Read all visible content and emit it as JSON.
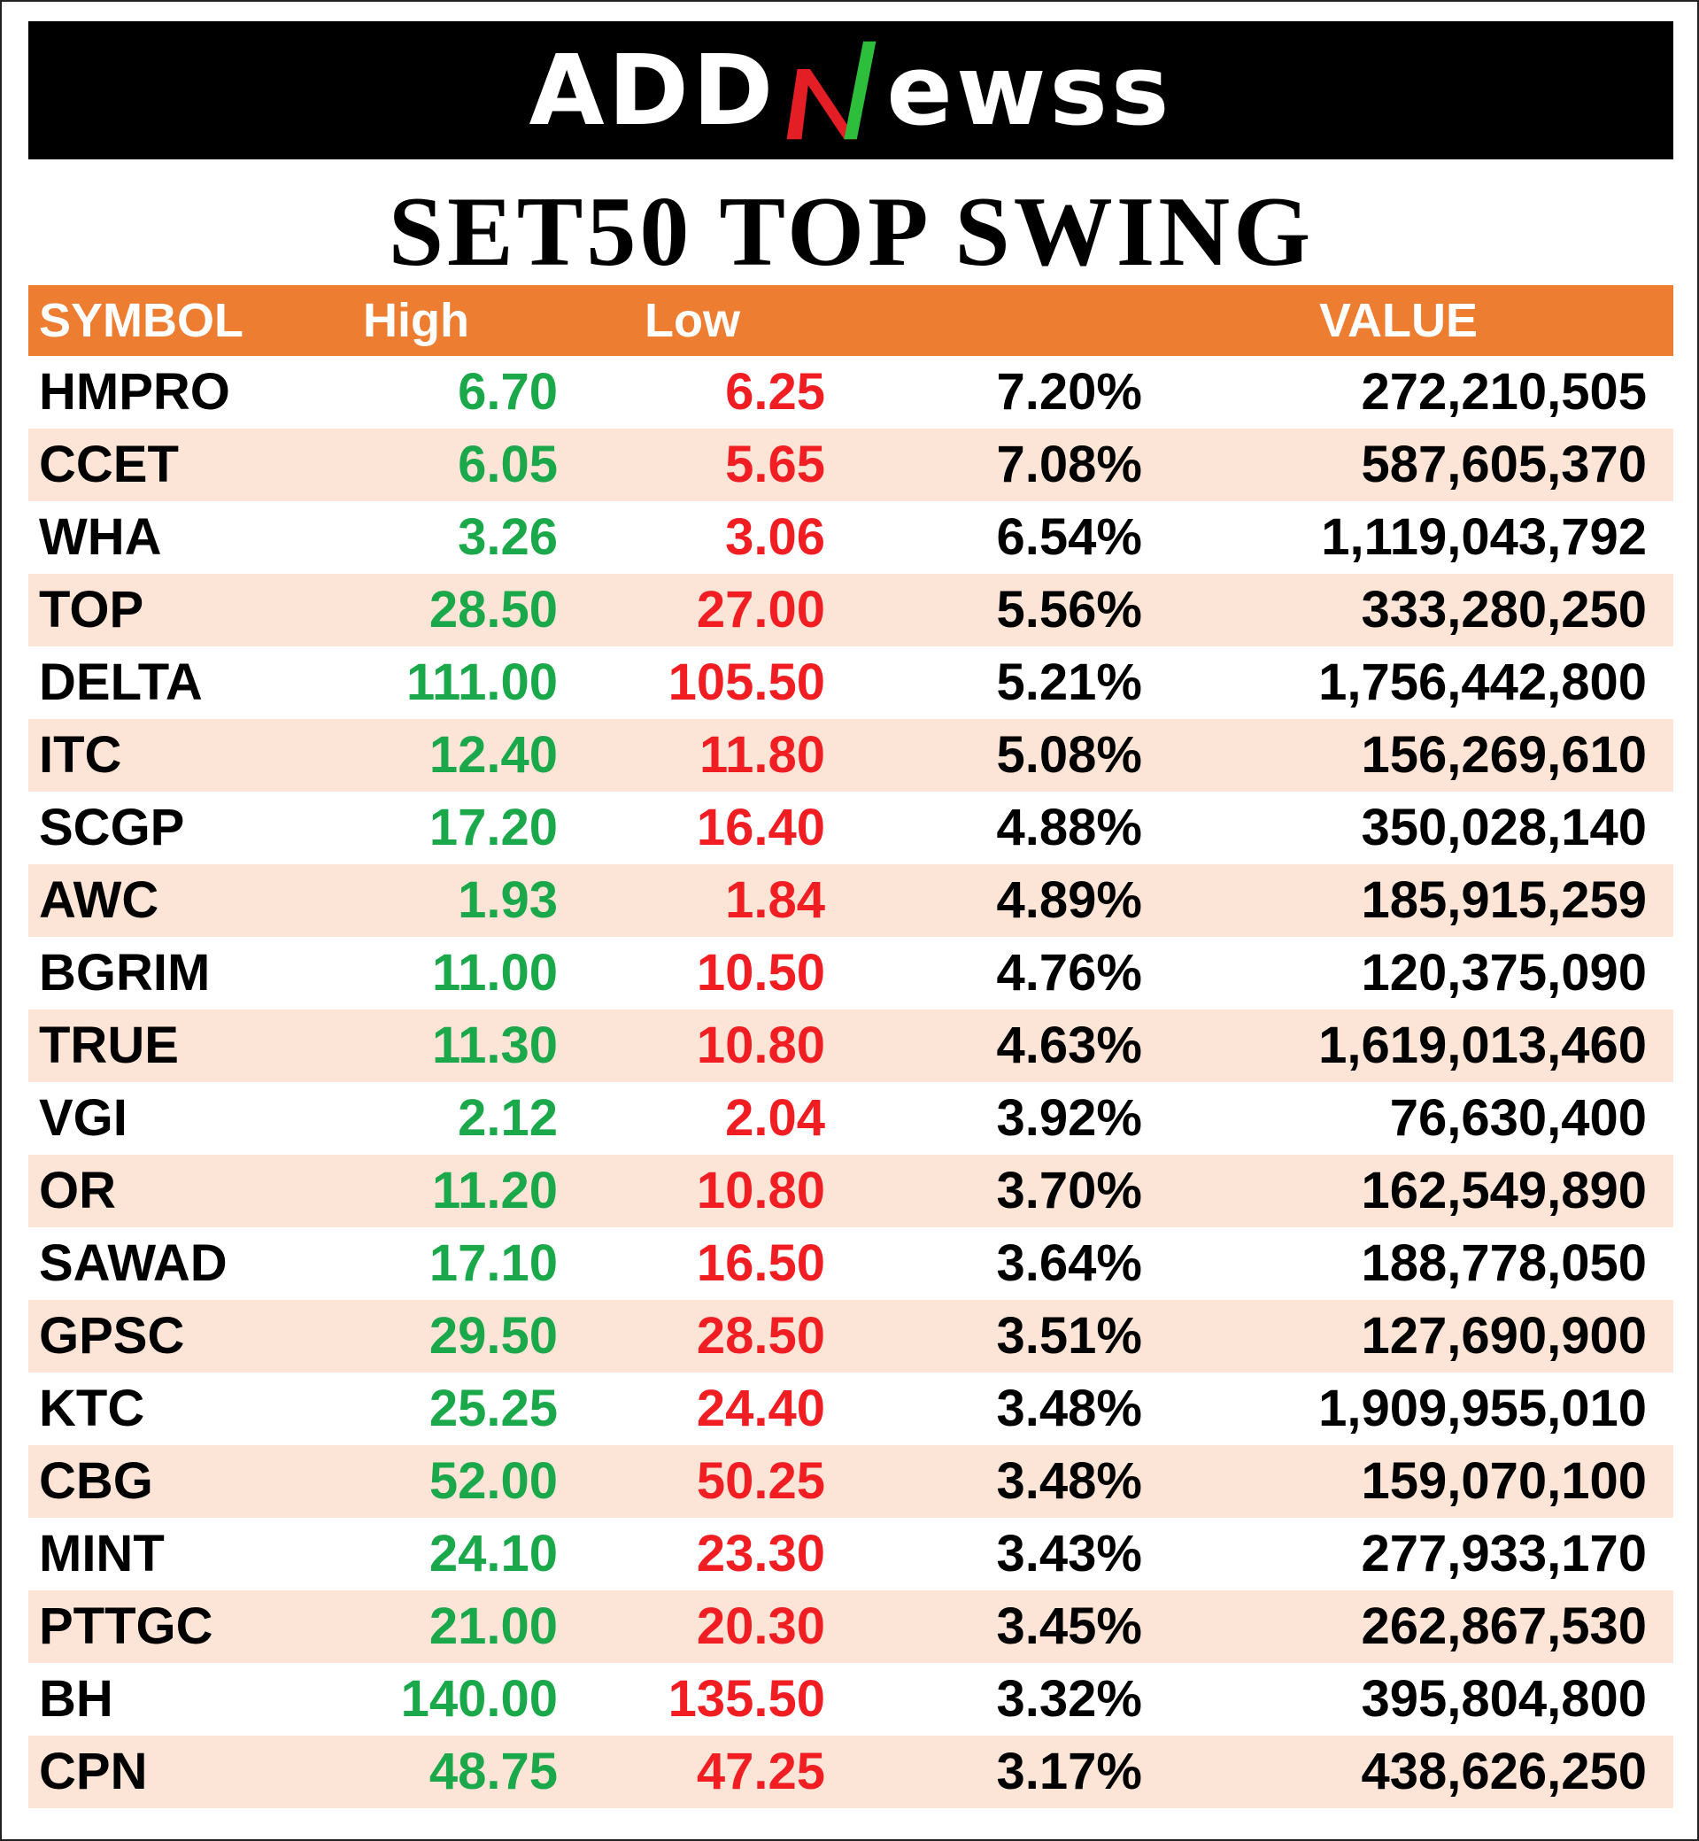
{
  "brand": {
    "logo_left": "ADD",
    "logo_right": "ewss",
    "n_colors": {
      "green": "#2DBE3C",
      "red": "#E31E24"
    }
  },
  "title": "SET50 TOP SWING",
  "colors": {
    "header_bg": "#ED7D31",
    "stripe_bg": "#FCE4D6",
    "high": "#1AA84B",
    "low": "#F01E23"
  },
  "chart_data": {
    "type": "table",
    "columns": [
      "SYMBOL",
      "High",
      "Low",
      "",
      "VALUE"
    ],
    "rows": [
      {
        "symbol": "HMPRO",
        "high": "6.70",
        "low": "6.25",
        "swing": "7.20%",
        "value": "272,210,505"
      },
      {
        "symbol": "CCET",
        "high": "6.05",
        "low": "5.65",
        "swing": "7.08%",
        "value": "587,605,370"
      },
      {
        "symbol": "WHA",
        "high": "3.26",
        "low": "3.06",
        "swing": "6.54%",
        "value": "1,119,043,792"
      },
      {
        "symbol": "TOP",
        "high": "28.50",
        "low": "27.00",
        "swing": "5.56%",
        "value": "333,280,250"
      },
      {
        "symbol": "DELTA",
        "high": "111.00",
        "low": "105.50",
        "swing": "5.21%",
        "value": "1,756,442,800"
      },
      {
        "symbol": "ITC",
        "high": "12.40",
        "low": "11.80",
        "swing": "5.08%",
        "value": "156,269,610"
      },
      {
        "symbol": "SCGP",
        "high": "17.20",
        "low": "16.40",
        "swing": "4.88%",
        "value": "350,028,140"
      },
      {
        "symbol": "AWC",
        "high": "1.93",
        "low": "1.84",
        "swing": "4.89%",
        "value": "185,915,259"
      },
      {
        "symbol": "BGRIM",
        "high": "11.00",
        "low": "10.50",
        "swing": "4.76%",
        "value": "120,375,090"
      },
      {
        "symbol": "TRUE",
        "high": "11.30",
        "low": "10.80",
        "swing": "4.63%",
        "value": "1,619,013,460"
      },
      {
        "symbol": "VGI",
        "high": "2.12",
        "low": "2.04",
        "swing": "3.92%",
        "value": "76,630,400"
      },
      {
        "symbol": "OR",
        "high": "11.20",
        "low": "10.80",
        "swing": "3.70%",
        "value": "162,549,890"
      },
      {
        "symbol": "SAWAD",
        "high": "17.10",
        "low": "16.50",
        "swing": "3.64%",
        "value": "188,778,050"
      },
      {
        "symbol": "GPSC",
        "high": "29.50",
        "low": "28.50",
        "swing": "3.51%",
        "value": "127,690,900"
      },
      {
        "symbol": "KTC",
        "high": "25.25",
        "low": "24.40",
        "swing": "3.48%",
        "value": "1,909,955,010"
      },
      {
        "symbol": "CBG",
        "high": "52.00",
        "low": "50.25",
        "swing": "3.48%",
        "value": "159,070,100"
      },
      {
        "symbol": "MINT",
        "high": "24.10",
        "low": "23.30",
        "swing": "3.43%",
        "value": "277,933,170"
      },
      {
        "symbol": "PTTGC",
        "high": "21.00",
        "low": "20.30",
        "swing": "3.45%",
        "value": "262,867,530"
      },
      {
        "symbol": "BH",
        "high": "140.00",
        "low": "135.50",
        "swing": "3.32%",
        "value": "395,804,800"
      },
      {
        "symbol": "CPN",
        "high": "48.75",
        "low": "47.25",
        "swing": "3.17%",
        "value": "438,626,250"
      }
    ]
  }
}
